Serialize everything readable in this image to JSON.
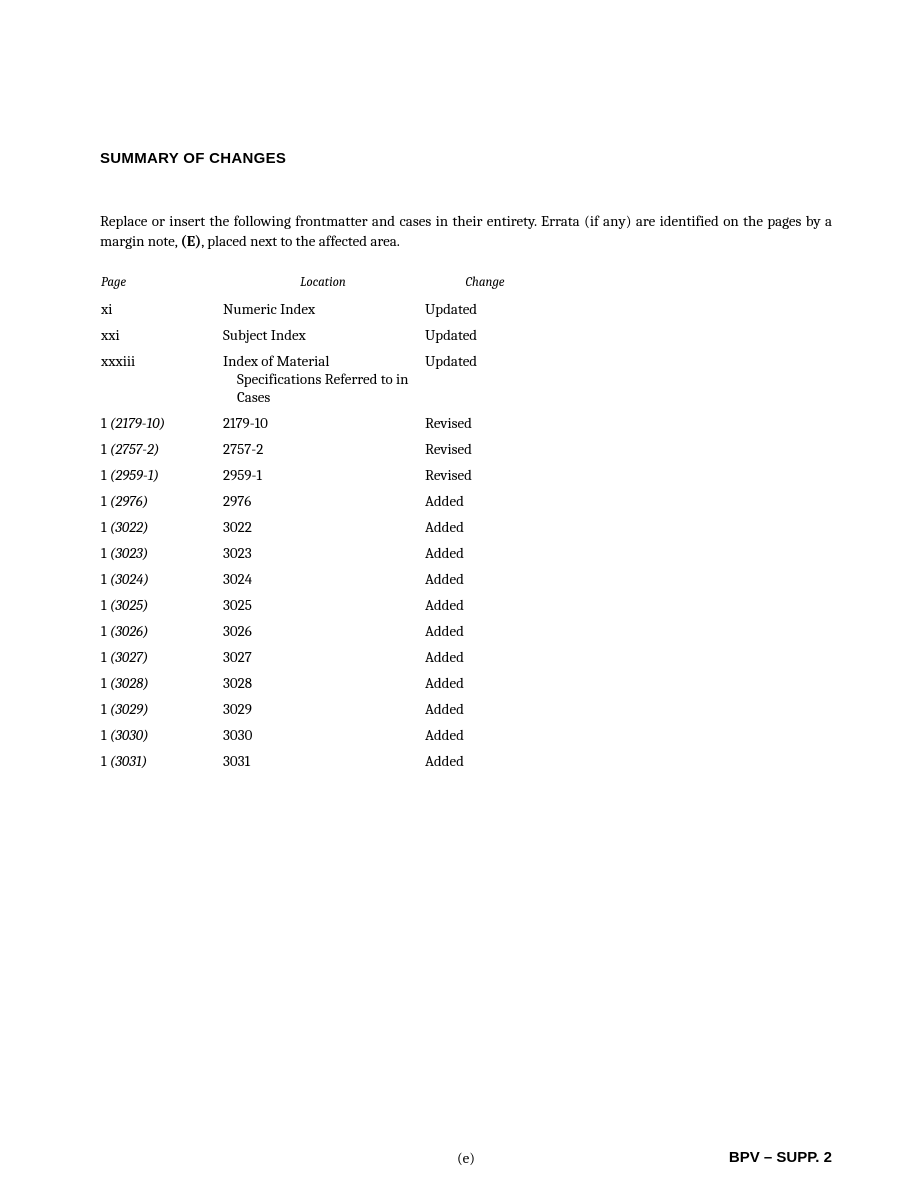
{
  "title": "SUMMARY OF CHANGES",
  "intro_part1": "Replace or insert the following frontmatter and cases in their entirety. Errata (if any) are identified on the pages by a margin note, ",
  "intro_bold": "(E)",
  "intro_part2": ", placed next to the affected area.",
  "table": {
    "headers": {
      "page": "Page",
      "location": "Location",
      "change": "Change"
    },
    "rows": [
      {
        "page_pre": "xi",
        "page_italic": "",
        "location": "Numeric Index",
        "location2": "",
        "change": "Updated"
      },
      {
        "page_pre": "xxi",
        "page_italic": "",
        "location": "Subject Index",
        "location2": "",
        "change": "Updated"
      },
      {
        "page_pre": "xxxiii",
        "page_italic": "",
        "location": "Index of Material",
        "location2": "Specifications Referred to in Cases",
        "change": "Updated"
      },
      {
        "page_pre": "1 ",
        "page_italic": "(2179-10)",
        "location": "2179-10",
        "location2": "",
        "change": "Revised"
      },
      {
        "page_pre": "1 ",
        "page_italic": "(2757-2)",
        "location": "2757-2",
        "location2": "",
        "change": "Revised"
      },
      {
        "page_pre": "1 ",
        "page_italic": "(2959-1)",
        "location": "2959-1",
        "location2": "",
        "change": "Revised"
      },
      {
        "page_pre": "1 ",
        "page_italic": "(2976)",
        "location": "2976",
        "location2": "",
        "change": "Added"
      },
      {
        "page_pre": "1 ",
        "page_italic": "(3022)",
        "location": "3022",
        "location2": "",
        "change": "Added"
      },
      {
        "page_pre": "1 ",
        "page_italic": "(3023)",
        "location": "3023",
        "location2": "",
        "change": "Added"
      },
      {
        "page_pre": "1 ",
        "page_italic": "(3024)",
        "location": "3024",
        "location2": "",
        "change": "Added"
      },
      {
        "page_pre": "1 ",
        "page_italic": "(3025)",
        "location": "3025",
        "location2": "",
        "change": "Added"
      },
      {
        "page_pre": "1 ",
        "page_italic": "(3026)",
        "location": "3026",
        "location2": "",
        "change": "Added"
      },
      {
        "page_pre": "1 ",
        "page_italic": "(3027)",
        "location": "3027",
        "location2": "",
        "change": "Added"
      },
      {
        "page_pre": "1 ",
        "page_italic": "(3028)",
        "location": "3028",
        "location2": "",
        "change": "Added"
      },
      {
        "page_pre": "1 ",
        "page_italic": "(3029)",
        "location": "3029",
        "location2": "",
        "change": "Added"
      },
      {
        "page_pre": "1 ",
        "page_italic": "(3030)",
        "location": "3030",
        "location2": "",
        "change": "Added"
      },
      {
        "page_pre": "1 ",
        "page_italic": "(3031)",
        "location": "3031",
        "location2": "",
        "change": "Added"
      }
    ]
  },
  "footer": {
    "center": "(e)",
    "right": "BPV – SUPP. 2"
  }
}
